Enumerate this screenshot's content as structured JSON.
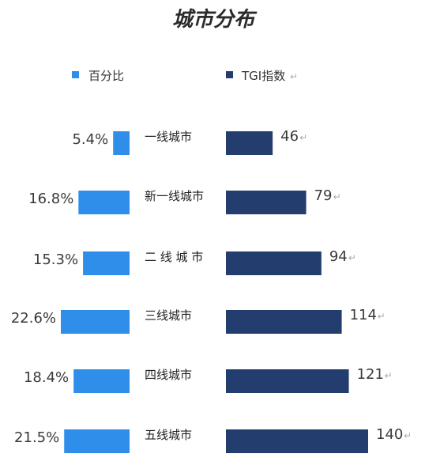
{
  "chart_data": {
    "type": "bar",
    "title": "城市分布",
    "legend": [
      {
        "name": "百分比",
        "color": "#2E8EEA"
      },
      {
        "name": "TGI指数",
        "color": "#233E6E"
      }
    ],
    "categories": [
      "一线城市",
      "新一线城市",
      "二 线 城 市",
      "三线城市",
      "四线城市",
      "五线城市"
    ],
    "series": [
      {
        "name": "百分比",
        "values": [
          5.4,
          16.8,
          15.3,
          22.6,
          18.4,
          21.5
        ],
        "labels": [
          "5.4%",
          "16.8%",
          "15.3%",
          "22.6%",
          "18.4%",
          "21.5%"
        ],
        "color": "#2E8EEA"
      },
      {
        "name": "TGI指数",
        "values": [
          46,
          79,
          94,
          114,
          121,
          140
        ],
        "labels": [
          "46",
          "79",
          "94",
          "114",
          "121",
          "140"
        ],
        "color": "#233E6E"
      }
    ]
  }
}
